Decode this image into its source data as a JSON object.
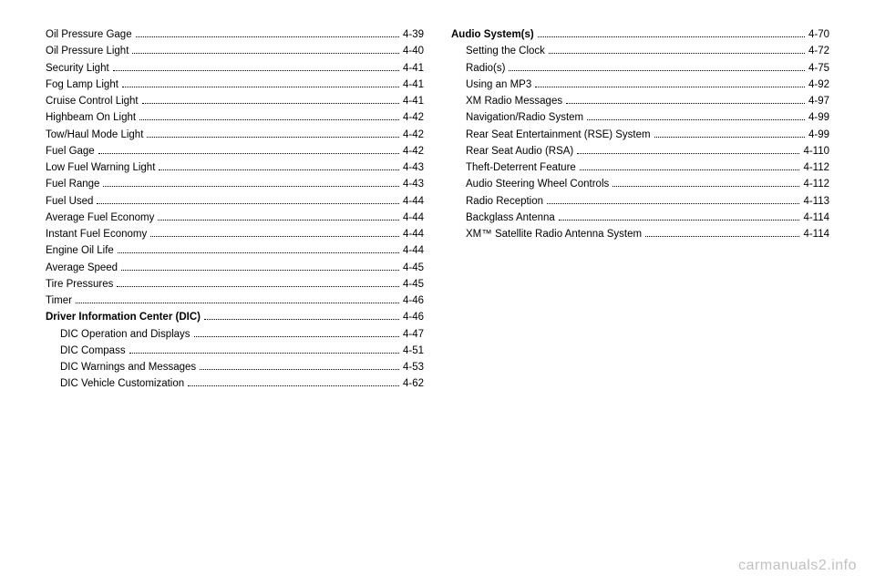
{
  "text_color": "#000000",
  "background_color": "#ffffff",
  "watermark": "carmanuals2.info",
  "columns": [
    {
      "entries": [
        {
          "label": "Oil Pressure Gage",
          "page": "4-39",
          "indent": 0,
          "bold": false
        },
        {
          "label": "Oil Pressure Light",
          "page": "4-40",
          "indent": 0,
          "bold": false
        },
        {
          "label": "Security Light",
          "page": "4-41",
          "indent": 0,
          "bold": false
        },
        {
          "label": "Fog Lamp Light",
          "page": "4-41",
          "indent": 0,
          "bold": false
        },
        {
          "label": "Cruise Control Light",
          "page": "4-41",
          "indent": 0,
          "bold": false
        },
        {
          "label": "Highbeam On Light",
          "page": "4-42",
          "indent": 0,
          "bold": false
        },
        {
          "label": "Tow/Haul Mode Light",
          "page": "4-42",
          "indent": 0,
          "bold": false
        },
        {
          "label": "Fuel Gage",
          "page": "4-42",
          "indent": 0,
          "bold": false
        },
        {
          "label": "Low Fuel Warning Light",
          "page": "4-43",
          "indent": 0,
          "bold": false
        },
        {
          "label": "Fuel Range",
          "page": "4-43",
          "indent": 0,
          "bold": false
        },
        {
          "label": "Fuel Used",
          "page": "4-44",
          "indent": 0,
          "bold": false
        },
        {
          "label": "Average Fuel Economy",
          "page": "4-44",
          "indent": 0,
          "bold": false
        },
        {
          "label": "Instant Fuel Economy",
          "page": "4-44",
          "indent": 0,
          "bold": false
        },
        {
          "label": "Engine Oil Life",
          "page": "4-44",
          "indent": 0,
          "bold": false
        },
        {
          "label": "Average Speed",
          "page": "4-45",
          "indent": 0,
          "bold": false
        },
        {
          "label": "Tire Pressures",
          "page": "4-45",
          "indent": 0,
          "bold": false
        },
        {
          "label": "Timer",
          "page": "4-46",
          "indent": 0,
          "bold": false
        },
        {
          "label": "Driver Information Center (DIC)",
          "page": "4-46",
          "indent": 0,
          "bold": true
        },
        {
          "label": "DIC Operation and Displays",
          "page": "4-47",
          "indent": 1,
          "bold": false
        },
        {
          "label": "DIC Compass",
          "page": "4-51",
          "indent": 1,
          "bold": false
        },
        {
          "label": "DIC Warnings and Messages",
          "page": "4-53",
          "indent": 1,
          "bold": false
        },
        {
          "label": "DIC Vehicle Customization",
          "page": "4-62",
          "indent": 1,
          "bold": false
        }
      ]
    },
    {
      "entries": [
        {
          "label": "Audio System(s)",
          "page": "4-70",
          "indent": 0,
          "bold": true
        },
        {
          "label": "Setting the Clock",
          "page": "4-72",
          "indent": 1,
          "bold": false
        },
        {
          "label": "Radio(s)",
          "page": "4-75",
          "indent": 1,
          "bold": false
        },
        {
          "label": "Using an MP3",
          "page": "4-92",
          "indent": 1,
          "bold": false
        },
        {
          "label": "XM Radio Messages",
          "page": "4-97",
          "indent": 1,
          "bold": false
        },
        {
          "label": "Navigation/Radio System",
          "page": "4-99",
          "indent": 1,
          "bold": false
        },
        {
          "label": "Rear Seat Entertainment (RSE) System",
          "page": "4-99",
          "indent": 1,
          "bold": false
        },
        {
          "label": "Rear Seat Audio (RSA)",
          "page": "4-110",
          "indent": 1,
          "bold": false
        },
        {
          "label": "Theft-Deterrent Feature",
          "page": "4-112",
          "indent": 1,
          "bold": false
        },
        {
          "label": "Audio Steering Wheel Controls",
          "page": "4-112",
          "indent": 1,
          "bold": false
        },
        {
          "label": "Radio Reception",
          "page": "4-113",
          "indent": 1,
          "bold": false
        },
        {
          "label": "Backglass Antenna",
          "page": "4-114",
          "indent": 1,
          "bold": false
        },
        {
          "label": "XM™ Satellite Radio Antenna System",
          "page": "4-114",
          "indent": 1,
          "bold": false
        }
      ]
    }
  ]
}
